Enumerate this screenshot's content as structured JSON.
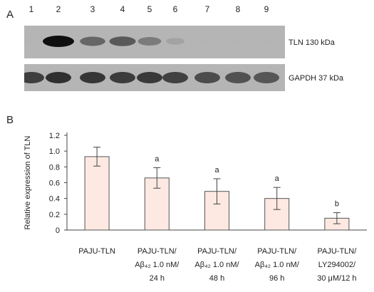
{
  "panel_a": {
    "letter": "A",
    "lanes": [
      "1",
      "2",
      "3",
      "4",
      "5",
      "6",
      "7",
      "8",
      "9"
    ],
    "blots": [
      {
        "label": "TLN 130 kDa",
        "band_intensity": [
          0.05,
          1.0,
          0.7,
          0.75,
          0.6,
          0.35,
          0.03,
          0.02,
          0.02
        ]
      },
      {
        "label": "GAPDH 37 kDa",
        "band_intensity": [
          0.85,
          0.9,
          0.88,
          0.86,
          0.87,
          0.84,
          0.8,
          0.78,
          0.76
        ]
      }
    ]
  },
  "panel_b": {
    "letter": "B",
    "chart_data": {
      "type": "bar",
      "ylabel": "Relative expression of TLN",
      "ylim": [
        0,
        1.2
      ],
      "yticks": [
        "0",
        "0.2",
        "0.4",
        "0.6",
        "0.8",
        "1.0",
        "1.2"
      ],
      "categories": [
        [
          "PAJU-TLN"
        ],
        [
          "PAJU-TLN/",
          "Aβ₄₂ 1.0 nM/",
          "24 h"
        ],
        [
          "PAJU-TLN/",
          "Aβ₄₂ 1.0 nM/",
          "48 h"
        ],
        [
          "PAJU-TLN/",
          "Aβ₄₂ 1.0 nM/",
          "96 h"
        ],
        [
          "PAJU-TLN/",
          "LY294002/",
          "30 μM/12 h"
        ]
      ],
      "values": [
        0.93,
        0.66,
        0.49,
        0.4,
        0.15
      ],
      "errors": [
        0.12,
        0.13,
        0.16,
        0.14,
        0.07
      ],
      "annotations": [
        "",
        "a",
        "a",
        "a",
        "b"
      ],
      "bar_color": "#fde9e1",
      "bar_stroke": "#555555"
    }
  }
}
